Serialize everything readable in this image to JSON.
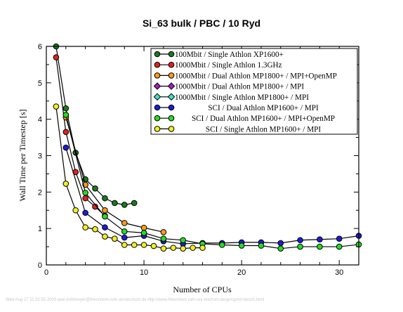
{
  "chart_data": {
    "type": "line",
    "title": "Si_63 bulk / PBC / 10 Ryd",
    "xlabel": "Number of CPUs",
    "ylabel": "Wall Time per Timestep [s]",
    "xlim": [
      0,
      32
    ],
    "ylim": [
      0,
      6
    ],
    "xticks": [
      0,
      10,
      20,
      30
    ],
    "yticks": [
      0,
      1,
      2,
      3,
      4,
      5,
      6
    ],
    "grid": false,
    "legend_position": "top-right",
    "series": [
      {
        "name": "100Mbit / Single Athlon XP1600+",
        "color": "#1a7a1a",
        "points": [
          [
            1,
            6.0
          ],
          [
            2,
            4.3
          ],
          [
            3,
            3.08
          ],
          [
            4,
            2.35
          ],
          [
            5,
            2.1
          ],
          [
            6,
            1.83
          ],
          [
            7,
            1.7
          ],
          [
            8,
            1.65
          ],
          [
            9,
            1.7
          ]
        ]
      },
      {
        "name": "1000Mbit / Single Athlon 1.3GHz",
        "color": "#e02020",
        "points": [
          [
            1,
            5.7
          ],
          [
            2,
            3.65
          ],
          [
            3,
            2.55
          ],
          [
            4,
            1.83
          ],
          [
            5,
            1.6
          ],
          [
            6,
            1.35
          ]
        ]
      },
      {
        "name": "1000Mbit / Dual Athlon MP1800+ / MPI+OpenMP",
        "color": "#ff9a1a",
        "points": [
          [
            2,
            4.05
          ],
          [
            4,
            2.2
          ],
          [
            6,
            1.5
          ],
          [
            8,
            1.15
          ],
          [
            10,
            1.02
          ],
          [
            12,
            0.9
          ]
        ]
      },
      {
        "name": "1000Mbit / Dual Athlon MP1800+ / MPI",
        "color": "#a020c0",
        "points": []
      },
      {
        "name": "1000Mbit / Single Athlon MP1800+ / MPI",
        "color": "#40e0c0",
        "points": []
      },
      {
        "name": "SCI / Dual Athlon MP1600+ / MPI",
        "color": "#1c1cd8",
        "points": [
          [
            2,
            3.22
          ],
          [
            4,
            1.43
          ],
          [
            6,
            1.03
          ],
          [
            8,
            0.75
          ],
          [
            10,
            0.8
          ],
          [
            12,
            0.65
          ],
          [
            14,
            0.58
          ],
          [
            16,
            0.6
          ],
          [
            18,
            0.6
          ],
          [
            20,
            0.62
          ],
          [
            22,
            0.62
          ],
          [
            24,
            0.6
          ],
          [
            26,
            0.68
          ],
          [
            28,
            0.7
          ],
          [
            30,
            0.72
          ],
          [
            32,
            0.8
          ]
        ]
      },
      {
        "name": "SCI / Dual Athlon MP1600+ / MPI+OpenMP",
        "color": "#22dd22",
        "points": [
          [
            2,
            4.12
          ],
          [
            4,
            1.98
          ],
          [
            6,
            1.33
          ],
          [
            8,
            0.92
          ],
          [
            10,
            0.88
          ],
          [
            12,
            0.72
          ],
          [
            14,
            0.68
          ],
          [
            16,
            0.58
          ],
          [
            18,
            0.55
          ],
          [
            20,
            0.53
          ],
          [
            22,
            0.53
          ],
          [
            24,
            0.45
          ],
          [
            26,
            0.5
          ],
          [
            28,
            0.5
          ],
          [
            30,
            0.5
          ],
          [
            32,
            0.56
          ]
        ]
      },
      {
        "name": "SCI / Single Athlon MP1600+ / MPI",
        "color": "#f0f020",
        "points": [
          [
            1,
            4.35
          ],
          [
            2,
            2.23
          ],
          [
            3,
            1.5
          ],
          [
            4,
            1.03
          ],
          [
            5,
            0.98
          ],
          [
            6,
            0.78
          ],
          [
            7,
            0.72
          ],
          [
            8,
            0.55
          ],
          [
            9,
            0.55
          ],
          [
            10,
            0.55
          ],
          [
            11,
            0.52
          ],
          [
            12,
            0.45
          ],
          [
            13,
            0.47
          ],
          [
            14,
            0.45
          ],
          [
            15,
            0.47
          ],
          [
            16,
            0.47
          ]
        ]
      }
    ]
  },
  "footer": "Wed Aug 27 11:32:55 2003  axel.kohlmeyer@theochem.ruhr-uni-bochum.de  http://www.theochem.ruhr-uni-bochum.de/go/cpmd-bench.html"
}
